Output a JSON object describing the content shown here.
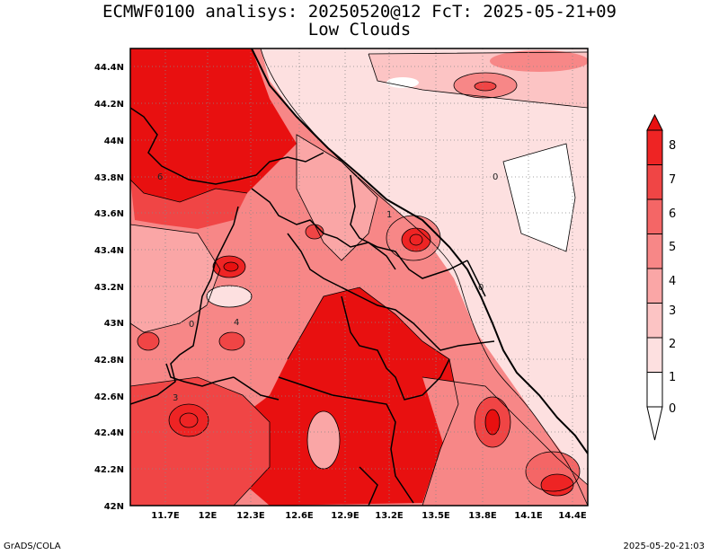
{
  "title": "ECMWF0100 analisys: 20250520@12 FcT: 2025-05-21+09",
  "subtitle": "Low Clouds",
  "footer": {
    "credit": "GrADS/COLA",
    "timestamp": "2025-05-20-21:03"
  },
  "map": {
    "lat_labels": [
      "44.4N",
      "44.2N",
      "44N",
      "43.8N",
      "43.6N",
      "43.4N",
      "43.2N",
      "43N",
      "42.8N",
      "42.6N",
      "42.4N",
      "42.2N",
      "42N"
    ],
    "lon_labels": [
      "11.7E",
      "12E",
      "12.3E",
      "12.6E",
      "12.9E",
      "13.2E",
      "13.5E",
      "13.8E",
      "14.1E",
      "14.4E"
    ],
    "lon_range": [
      11.5,
      14.5
    ],
    "lat_range": [
      42.0,
      44.5
    ],
    "grid": "dotted",
    "contour_labels": [
      "0",
      "1",
      "3",
      "4",
      "6",
      "0",
      "0"
    ]
  },
  "colorbar": {
    "levels": [
      "0",
      "1",
      "2",
      "3",
      "4",
      "5",
      "6",
      "7",
      "8"
    ],
    "colors": [
      "#ffffff",
      "#fde0e0",
      "#fcc4c4",
      "#faa6a6",
      "#f78787",
      "#f46666",
      "#f04545",
      "#ee2424",
      "#e81010"
    ],
    "triangle_low": "#ffffff",
    "triangle_high": "#e81010"
  }
}
